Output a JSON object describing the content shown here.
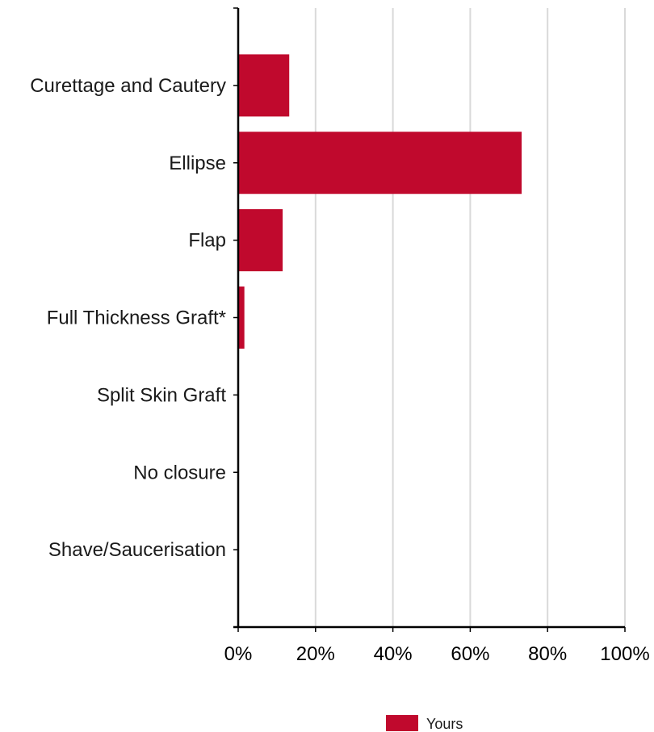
{
  "chart_data": {
    "type": "bar",
    "orientation": "horizontal",
    "categories": [
      "Curettage and Cautery",
      "Ellipse",
      "Flap",
      "Full Thickness Graft*",
      "Split Skin Graft",
      "No closure",
      "Shave/Saucerisation"
    ],
    "series": [
      {
        "name": "Yours",
        "values": [
          13.2,
          73.3,
          11.5,
          1.6,
          0,
          0,
          0
        ]
      }
    ],
    "xlim": [
      0,
      100
    ],
    "xticks": [
      0,
      20,
      40,
      60,
      80,
      100
    ],
    "xtick_labels": [
      "0%",
      "20%",
      "40%",
      "60%",
      "80%",
      "100%"
    ],
    "grid": "vertical",
    "legend_position": "bottom",
    "colors": {
      "bar": "#c0092d",
      "grid": "#d9d9d9",
      "axis": "#000000"
    }
  }
}
